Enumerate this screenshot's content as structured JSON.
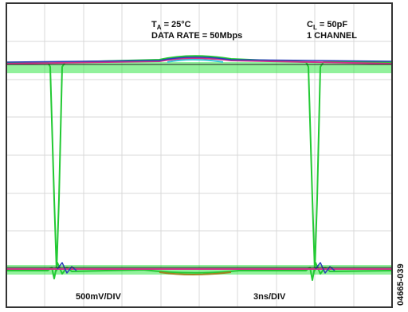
{
  "labels": {
    "temperature": {
      "symbol": "T",
      "subscript": "A",
      "value": " = 25°C"
    },
    "data_rate": "DATA RATE = 50Mbps",
    "load": {
      "symbol": "C",
      "subscript": "L",
      "value": " = 50pF"
    },
    "channels": "1 CHANNEL",
    "vertical_scale": "500mV/DIV",
    "horizontal_scale": "3ns/DIV",
    "figure_id": "04665-039"
  }
}
